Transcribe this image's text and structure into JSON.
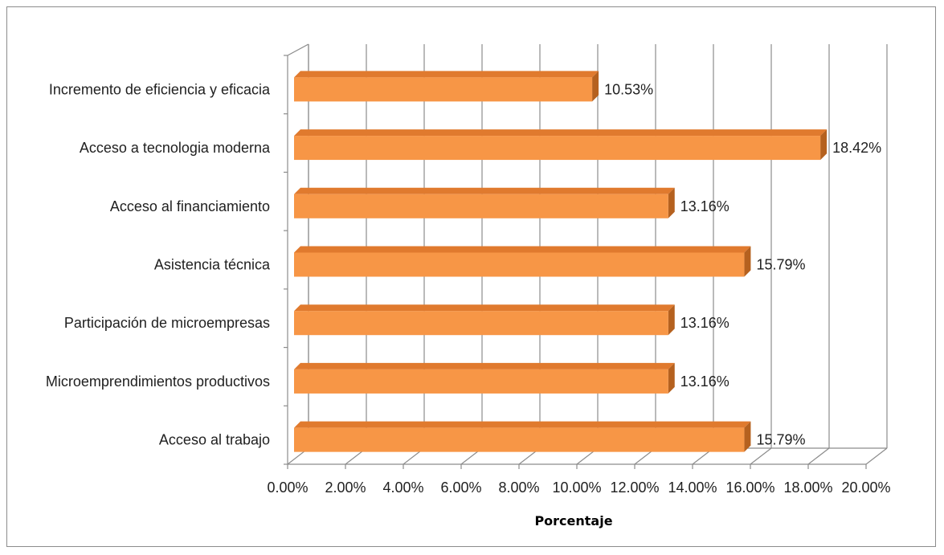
{
  "chart_data": {
    "type": "bar",
    "orientation": "horizontal",
    "style": "3d-clustered",
    "categories": [
      "Incremento de eficiencia y eficacia",
      "Acceso a tecnologia moderna",
      "Acceso al financiamiento",
      "Asistencia técnica",
      "Participación de microempresas",
      "Microemprendimientos productivos",
      "Acceso al trabajo"
    ],
    "values": [
      10.53,
      18.42,
      13.16,
      15.79,
      13.16,
      13.16,
      15.79
    ],
    "data_labels": [
      "10.53%",
      "18.42%",
      "13.16%",
      "15.79%",
      "13.16%",
      "13.16%",
      "15.79%"
    ],
    "xlabel": "Porcentaje",
    "ylabel": "",
    "xlim": [
      0,
      20
    ],
    "x_ticks": [
      0,
      2,
      4,
      6,
      8,
      10,
      12,
      14,
      16,
      18,
      20
    ],
    "x_tick_labels": [
      "0.00%",
      "2.00%",
      "4.00%",
      "6.00%",
      "8.00%",
      "10.00%",
      "12.00%",
      "14.00%",
      "16.00%",
      "18.00%",
      "20.00%"
    ],
    "grid": true,
    "legend": "none",
    "colors": {
      "bar_front": "#f79646",
      "bar_top": "#e07a2e",
      "bar_side": "#b5611f",
      "gridline": "#8c8c8c"
    }
  }
}
